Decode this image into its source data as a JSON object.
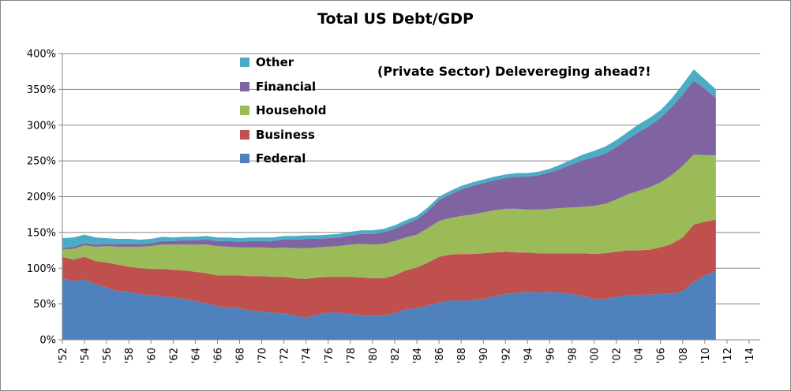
{
  "chart_data": {
    "type": "area",
    "stacked": true,
    "title": "Total US Debt/GDP",
    "annotation": "(Private Sector) Delevereging ahead?!",
    "xlabel": "",
    "ylabel": "",
    "xlim": [
      1952,
      2015
    ],
    "ylim": [
      0,
      400
    ],
    "y_ticks": [
      0,
      50,
      100,
      150,
      200,
      250,
      300,
      350,
      400
    ],
    "y_tick_labels": [
      "0%",
      "50%",
      "100%",
      "150%",
      "200%",
      "250%",
      "300%",
      "350%",
      "400%"
    ],
    "x_tick_labels": [
      "'52",
      "'54",
      "'56",
      "'58",
      "'60",
      "'62",
      "'64",
      "'66",
      "'68",
      "'70",
      "'72",
      "'74",
      "'76",
      "'78",
      "'80",
      "'82",
      "'84",
      "'86",
      "'88",
      "'90",
      "'92",
      "'94",
      "'96",
      "'98",
      "'00",
      "'02",
      "'04",
      "'06",
      "'08",
      "'10",
      "'12",
      "'14"
    ],
    "legend_position": "top-center",
    "legend_order": [
      "Other",
      "Financial",
      "Household",
      "Business",
      "Federal"
    ],
    "x": [
      1952,
      1953,
      1954,
      1955,
      1956,
      1957,
      1958,
      1959,
      1960,
      1961,
      1962,
      1963,
      1964,
      1965,
      1966,
      1967,
      1968,
      1969,
      1970,
      1971,
      1972,
      1973,
      1974,
      1975,
      1976,
      1977,
      1978,
      1979,
      1980,
      1981,
      1982,
      1983,
      1984,
      1985,
      1986,
      1987,
      1988,
      1989,
      1990,
      1991,
      1992,
      1993,
      1994,
      1995,
      1996,
      1997,
      1998,
      1999,
      2000,
      2001,
      2002,
      2003,
      2004,
      2005,
      2006,
      2007,
      2008,
      2009,
      2010,
      2011
    ],
    "series": [
      {
        "name": "Federal",
        "color": "#4f81bd",
        "values": [
          86,
          82,
          84,
          78,
          73,
          68,
          67,
          64,
          62,
          61,
          59,
          57,
          54,
          51,
          47,
          45,
          44,
          41,
          39,
          38,
          37,
          34,
          31,
          35,
          38,
          38,
          36,
          34,
          34,
          34,
          37,
          43,
          44,
          48,
          52,
          55,
          55,
          55,
          57,
          61,
          64,
          66,
          67,
          66,
          67,
          66,
          64,
          61,
          57,
          57,
          60,
          62,
          63,
          63,
          64,
          64,
          68,
          81,
          90,
          96
        ]
      },
      {
        "name": "Business",
        "color": "#c0504d",
        "values": [
          30,
          30,
          32,
          32,
          35,
          37,
          35,
          36,
          37,
          38,
          39,
          40,
          41,
          42,
          43,
          45,
          46,
          48,
          50,
          50,
          51,
          52,
          54,
          52,
          50,
          50,
          52,
          53,
          52,
          52,
          53,
          54,
          57,
          60,
          64,
          64,
          65,
          65,
          64,
          61,
          59,
          56,
          55,
          55,
          54,
          55,
          57,
          60,
          63,
          64,
          63,
          63,
          62,
          63,
          65,
          70,
          75,
          80,
          75,
          72
        ]
      },
      {
        "name": "Household",
        "color": "#9bbb59",
        "values": [
          10,
          15,
          16,
          20,
          23,
          25,
          28,
          30,
          32,
          34,
          35,
          36,
          38,
          40,
          41,
          40,
          39,
          40,
          40,
          40,
          41,
          42,
          43,
          42,
          42,
          43,
          45,
          47,
          47,
          48,
          48,
          46,
          46,
          48,
          50,
          51,
          53,
          55,
          57,
          59,
          60,
          61,
          60,
          61,
          62,
          63,
          64,
          65,
          67,
          69,
          73,
          78,
          83,
          87,
          91,
          96,
          100,
          98,
          93,
          90
        ]
      },
      {
        "name": "Financial",
        "color": "#8064a2",
        "values": [
          2,
          3,
          3,
          3,
          3,
          4,
          4,
          4,
          4,
          5,
          5,
          6,
          6,
          7,
          7,
          8,
          8,
          9,
          9,
          10,
          11,
          12,
          13,
          12,
          12,
          12,
          13,
          14,
          15,
          16,
          17,
          19,
          21,
          24,
          29,
          33,
          37,
          40,
          41,
          42,
          43,
          45,
          46,
          48,
          51,
          55,
          60,
          65,
          68,
          70,
          73,
          77,
          82,
          86,
          90,
          95,
          100,
          103,
          93,
          80
        ]
      },
      {
        "name": "Other",
        "color": "#4bacc6",
        "values": [
          14,
          13,
          12,
          10,
          8,
          7,
          7,
          6,
          6,
          6,
          5,
          5,
          5,
          5,
          5,
          5,
          5,
          5,
          5,
          5,
          5,
          5,
          5,
          5,
          5,
          5,
          5,
          5,
          5,
          5,
          5,
          5,
          5,
          5,
          5,
          5,
          5,
          5,
          5,
          5,
          5,
          5,
          5,
          5,
          5,
          6,
          7,
          8,
          9,
          10,
          10,
          10,
          11,
          11,
          11,
          12,
          14,
          16,
          13,
          12
        ]
      }
    ]
  }
}
